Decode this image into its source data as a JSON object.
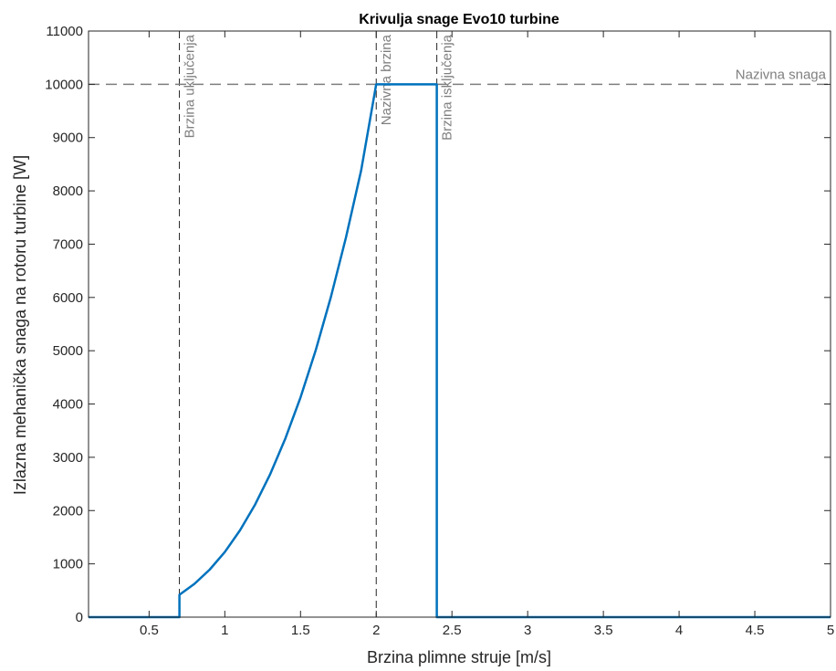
{
  "chart_data": {
    "type": "line",
    "title": "Krivulja snage Evo10 turbine",
    "xlabel": "Brzina plimne struje [m/s]",
    "ylabel": "Izlazna mehanička snaga na rotoru turbine [W]",
    "xlim": [
      0.1,
      5
    ],
    "ylim": [
      0,
      11000
    ],
    "xticks": [
      0.5,
      1,
      1.5,
      2,
      2.5,
      3,
      3.5,
      4,
      4.5,
      5
    ],
    "xtick_labels": [
      "0.5",
      "1",
      "1.5",
      "2",
      "2.5",
      "3",
      "3.5",
      "4",
      "4.5",
      "5"
    ],
    "yticks": [
      0,
      1000,
      2000,
      3000,
      4000,
      5000,
      6000,
      7000,
      8000,
      9000,
      10000,
      11000
    ],
    "ytick_labels": [
      "0",
      "1000",
      "2000",
      "3000",
      "4000",
      "5000",
      "6000",
      "7000",
      "8000",
      "9000",
      "10000",
      "11000"
    ],
    "grid": false,
    "series": [
      {
        "color": "#0072BD",
        "x": [
          0.1,
          0.7,
          0.7,
          0.8,
          0.9,
          1.0,
          1.1,
          1.2,
          1.3,
          1.4,
          1.5,
          1.6,
          1.7,
          1.8,
          1.9,
          2.0,
          2.4,
          2.4,
          5.0
        ],
        "y": [
          0,
          0,
          420,
          626,
          891,
          1222,
          1627,
          2112,
          2685,
          3354,
          4125,
          5006,
          6005,
          7128,
          8383,
          10000,
          10000,
          0,
          0
        ]
      }
    ],
    "reference_lines": [
      {
        "orientation": "vertical",
        "value": 0.7,
        "label": "Brzina uključenja",
        "color": "#7f7f7f",
        "style": "dashed"
      },
      {
        "orientation": "vertical",
        "value": 2.0,
        "label": "Nazivna brzina",
        "color": "#7f7f7f",
        "style": "dashed"
      },
      {
        "orientation": "vertical",
        "value": 2.4,
        "label": "Brzina isključenja",
        "color": "#7f7f7f",
        "style": "dashed"
      },
      {
        "orientation": "horizontal",
        "value": 10000,
        "label": "Nazivna snaga",
        "color": "#7f7f7f",
        "style": "dashed"
      }
    ]
  }
}
